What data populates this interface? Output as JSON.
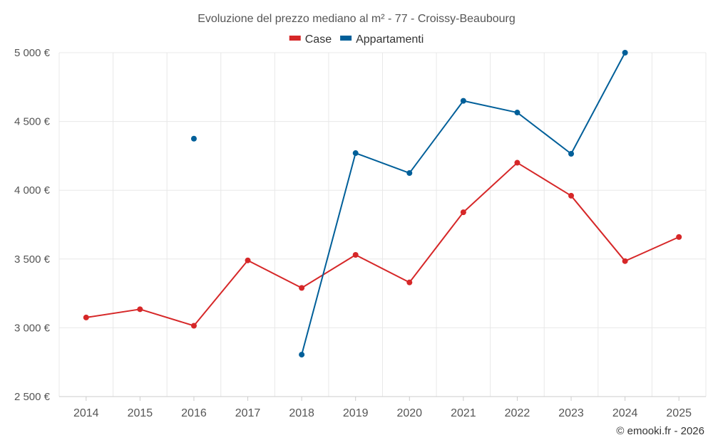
{
  "chart_data": {
    "type": "line",
    "title": "Evoluzione del prezzo mediano al m² - 77 - Croissy-Beaubourg",
    "x": [
      2014,
      2015,
      2016,
      2017,
      2018,
      2019,
      2020,
      2021,
      2022,
      2023,
      2024,
      2025
    ],
    "x_tick_labels": [
      "2014",
      "2015",
      "2016",
      "2017",
      "2018",
      "2019",
      "2020",
      "2021",
      "2022",
      "2023",
      "2024",
      "2025"
    ],
    "ylim": [
      2500,
      5000
    ],
    "y_ticks": [
      2500,
      3000,
      3500,
      4000,
      4500,
      5000
    ],
    "y_tick_labels": [
      "2 500 €",
      "3 000 €",
      "3 500 €",
      "4 000 €",
      "4 500 €",
      "5 000 €"
    ],
    "grid": true,
    "legend_position": "top-center",
    "series": [
      {
        "name": "Case",
        "color": "#d62728",
        "values": [
          3075,
          3135,
          3015,
          3490,
          3290,
          3530,
          3330,
          3840,
          4200,
          3960,
          3485,
          3660
        ]
      },
      {
        "name": "Appartamenti",
        "color": "#005f99",
        "values": [
          null,
          null,
          4375,
          null,
          2805,
          4270,
          4125,
          4650,
          4565,
          4265,
          5000,
          null
        ]
      }
    ]
  },
  "credit": "© emooki.fr - 2026"
}
